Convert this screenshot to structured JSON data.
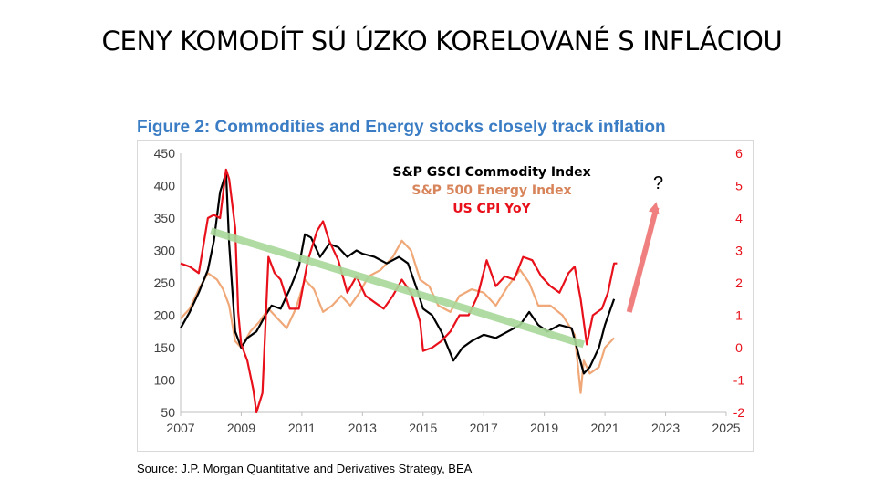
{
  "slide": {
    "title": "CENY KOMODÍT SÚ ÚZKO KORELOVANÉ S INFLÁCIOU"
  },
  "figure": {
    "title": "Figure 2: Commodities and Energy stocks closely track inflation",
    "source": "Source: J.P. Morgan Quantitative and Derivatives Strategy, BEA"
  },
  "chart_data": {
    "type": "line",
    "title": "Figure 2: Commodities and Energy stocks closely track inflation",
    "xlabel": "",
    "ylabel_left": "",
    "ylabel_right": "",
    "xlim": [
      2007,
      2025
    ],
    "ylim_left": [
      50,
      450
    ],
    "ylim_right": [
      -2,
      6
    ],
    "x_ticks": [
      "2007",
      "2009",
      "2011",
      "2013",
      "2015",
      "2017",
      "2019",
      "2021",
      "2023",
      "2025"
    ],
    "y_ticks_left": [
      "450",
      "400",
      "350",
      "300",
      "250",
      "200",
      "150",
      "100",
      "50"
    ],
    "y_ticks_right": [
      "6",
      "5",
      "4",
      "3",
      "2",
      "1",
      "0",
      "-1",
      "-2"
    ],
    "colors": {
      "gsci": "#000000",
      "energy": "#f0a878",
      "cpi": "#e8101a",
      "trend": "#a8d89a",
      "arrow": "#f08080",
      "axis_left": "#404040",
      "axis_right": "#e8101a"
    },
    "series": [
      {
        "name": "S&P GSCI  Commodity Index",
        "axis": "left",
        "x": [
          2007.0,
          2007.3,
          2007.6,
          2007.9,
          2008.1,
          2008.3,
          2008.5,
          2008.6,
          2008.8,
          2009.0,
          2009.2,
          2009.5,
          2009.8,
          2010.0,
          2010.3,
          2010.6,
          2010.9,
          2011.1,
          2011.3,
          2011.6,
          2011.9,
          2012.2,
          2012.5,
          2012.8,
          2013.0,
          2013.4,
          2013.8,
          2014.2,
          2014.5,
          2014.8,
          2015.0,
          2015.3,
          2015.6,
          2016.0,
          2016.3,
          2016.6,
          2017.0,
          2017.4,
          2017.8,
          2018.2,
          2018.5,
          2018.8,
          2019.1,
          2019.5,
          2019.9,
          2020.1,
          2020.3,
          2020.5,
          2020.8,
          2021.0,
          2021.3
        ],
        "values": [
          180,
          205,
          235,
          270,
          315,
          390,
          420,
          310,
          175,
          150,
          165,
          175,
          200,
          215,
          210,
          240,
          275,
          325,
          320,
          290,
          310,
          305,
          290,
          300,
          295,
          290,
          280,
          290,
          280,
          240,
          210,
          200,
          175,
          130,
          150,
          160,
          170,
          165,
          175,
          185,
          205,
          185,
          175,
          185,
          180,
          145,
          110,
          120,
          150,
          185,
          225
        ]
      },
      {
        "name": "S&P 500 Energy Index",
        "axis": "left",
        "x": [
          2007.0,
          2007.3,
          2007.6,
          2007.9,
          2008.2,
          2008.4,
          2008.6,
          2008.8,
          2009.0,
          2009.3,
          2009.6,
          2009.9,
          2010.2,
          2010.5,
          2010.8,
          2011.1,
          2011.4,
          2011.7,
          2012.0,
          2012.3,
          2012.6,
          2012.9,
          2013.2,
          2013.6,
          2014.0,
          2014.3,
          2014.6,
          2014.9,
          2015.2,
          2015.5,
          2015.9,
          2016.2,
          2016.6,
          2017.0,
          2017.4,
          2017.8,
          2018.2,
          2018.5,
          2018.8,
          2019.2,
          2019.6,
          2020.0,
          2020.2,
          2020.3,
          2020.5,
          2020.8,
          2021.0,
          2021.3
        ],
        "values": [
          195,
          210,
          240,
          265,
          255,
          240,
          215,
          160,
          150,
          175,
          190,
          210,
          195,
          180,
          210,
          255,
          240,
          205,
          215,
          230,
          215,
          235,
          260,
          270,
          290,
          315,
          300,
          255,
          245,
          215,
          205,
          230,
          240,
          235,
          215,
          245,
          270,
          250,
          215,
          215,
          200,
          170,
          80,
          130,
          110,
          120,
          150,
          165
        ]
      },
      {
        "name": "US CPI YoY",
        "axis": "right",
        "x": [
          2007.0,
          2007.3,
          2007.6,
          2007.9,
          2008.1,
          2008.3,
          2008.5,
          2008.6,
          2008.8,
          2008.9,
          2009.0,
          2009.2,
          2009.4,
          2009.5,
          2009.7,
          2009.9,
          2010.1,
          2010.3,
          2010.6,
          2010.9,
          2011.2,
          2011.5,
          2011.7,
          2011.9,
          2012.2,
          2012.5,
          2012.8,
          2013.1,
          2013.4,
          2013.7,
          2014.0,
          2014.3,
          2014.6,
          2014.9,
          2015.0,
          2015.3,
          2015.6,
          2015.9,
          2016.2,
          2016.5,
          2016.8,
          2017.1,
          2017.4,
          2017.7,
          2018.0,
          2018.3,
          2018.6,
          2018.9,
          2019.2,
          2019.5,
          2019.8,
          2020.0,
          2020.2,
          2020.4,
          2020.6,
          2020.9,
          2021.1,
          2021.3,
          2021.4
        ],
        "values": [
          2.6,
          2.5,
          2.3,
          4.0,
          4.1,
          4.0,
          5.5,
          5.2,
          3.7,
          1.1,
          0.1,
          -0.4,
          -1.3,
          -2.0,
          -1.4,
          2.8,
          2.3,
          2.1,
          1.2,
          1.2,
          2.7,
          3.6,
          3.9,
          3.3,
          2.7,
          1.7,
          2.2,
          1.6,
          1.4,
          1.2,
          1.6,
          2.1,
          1.7,
          0.8,
          -0.1,
          0.0,
          0.2,
          0.5,
          1.0,
          1.0,
          1.6,
          2.7,
          1.9,
          2.2,
          2.1,
          2.8,
          2.7,
          2.2,
          1.9,
          1.7,
          2.3,
          2.5,
          1.5,
          0.1,
          1.0,
          1.2,
          1.7,
          2.6,
          2.6
        ]
      }
    ],
    "annotations": {
      "trend_line": {
        "x": [
          2008.0,
          2020.3
        ],
        "y": [
          330,
          155
        ],
        "label": ""
      },
      "arrow": {
        "from": [
          2021.8,
          1.1
        ],
        "to": [
          2022.7,
          4.5
        ]
      },
      "question_mark": "?"
    },
    "legend": [
      "S&P GSCI  Commodity Index",
      "S&P 500 Energy Index",
      "US CPI YoY"
    ],
    "legend_placement": "top-center"
  }
}
